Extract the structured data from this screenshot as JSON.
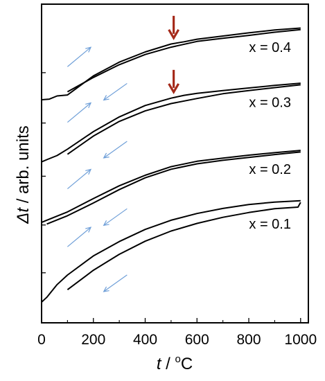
{
  "chart_data": {
    "type": "line",
    "title": "",
    "xlabel": {
      "var": "t",
      "unit": "oC",
      "sep": " / "
    },
    "ylabel": {
      "var": "Δt",
      "unit": "arb. units",
      "sep": " / "
    },
    "xlim": [
      0,
      1030
    ],
    "xticks": [
      0,
      200,
      400,
      600,
      800,
      1000
    ],
    "xtick_labels": [
      "0",
      "200",
      "400",
      "600",
      "800",
      "1000"
    ],
    "y_ticks_unlabeled": true,
    "ylim": [
      0,
      1
    ],
    "grid": false,
    "legend": "none",
    "series": [
      {
        "name": "x = 0.1",
        "heating": {
          "x": [
            0,
            20,
            60,
            100,
            200,
            300,
            400,
            500,
            600,
            700,
            800,
            900,
            1000
          ],
          "y": [
            0.065,
            0.08,
            0.12,
            0.15,
            0.21,
            0.255,
            0.293,
            0.322,
            0.343,
            0.359,
            0.371,
            0.379,
            0.383
          ]
        },
        "cooling": {
          "x": [
            1000,
            990,
            900,
            800,
            700,
            600,
            500,
            400,
            300,
            200,
            100
          ],
          "y": [
            0.378,
            0.363,
            0.358,
            0.346,
            0.331,
            0.312,
            0.288,
            0.256,
            0.215,
            0.165,
            0.104
          ]
        }
      },
      {
        "name": "x = 0.2",
        "heating": {
          "x": [
            0,
            20,
            60,
            100,
            200,
            300,
            400,
            500,
            600,
            700,
            800,
            900,
            1000
          ],
          "y": [
            0.315,
            0.322,
            0.335,
            0.348,
            0.39,
            0.43,
            0.463,
            0.49,
            0.507,
            0.517,
            0.526,
            0.534,
            0.541
          ]
        },
        "cooling": {
          "x": [
            1000,
            900,
            800,
            700,
            600,
            500,
            400,
            300,
            200,
            100,
            20
          ],
          "y": [
            0.536,
            0.528,
            0.519,
            0.51,
            0.499,
            0.482,
            0.455,
            0.418,
            0.376,
            0.336,
            0.31
          ]
        }
      },
      {
        "name": "x = 0.3",
        "heating": {
          "x": [
            0,
            20,
            60,
            100,
            200,
            300,
            400,
            500,
            550,
            600,
            700,
            800,
            900,
            1000
          ],
          "y": [
            0.505,
            0.512,
            0.525,
            0.545,
            0.6,
            0.646,
            0.682,
            0.705,
            0.714,
            0.72,
            0.729,
            0.737,
            0.745,
            0.752
          ]
        },
        "cooling": {
          "x": [
            1000,
            900,
            800,
            700,
            600,
            500,
            400,
            300,
            200,
            100
          ],
          "y": [
            0.747,
            0.738,
            0.729,
            0.719,
            0.704,
            0.688,
            0.665,
            0.632,
            0.586,
            0.529
          ]
        }
      },
      {
        "name": "x = 0.4",
        "heating": {
          "x": [
            0,
            30,
            60,
            100,
            200,
            300,
            400,
            500,
            550,
            600,
            700,
            800,
            900,
            1000
          ],
          "y": [
            0.7,
            0.702,
            0.712,
            0.715,
            0.775,
            0.818,
            0.85,
            0.875,
            0.882,
            0.89,
            0.9,
            0.91,
            0.919,
            0.925
          ]
        },
        "cooling": {
          "x": [
            1000,
            900,
            800,
            700,
            600,
            500,
            400,
            300,
            200,
            100
          ],
          "y": [
            0.92,
            0.912,
            0.902,
            0.893,
            0.883,
            0.865,
            0.842,
            0.81,
            0.77,
            0.725
          ]
        }
      }
    ],
    "series_labels": [
      "x = 0.1",
      "x = 0.2",
      "x = 0.3",
      "x = 0.4"
    ],
    "annotations": [
      {
        "type": "down-arrow",
        "x": 510,
        "series": "x = 0.4",
        "color": "#a52a1a"
      },
      {
        "type": "down-arrow",
        "x": 510,
        "series": "x = 0.3",
        "color": "#a52a1a"
      },
      {
        "type": "direction-arrows",
        "meaning": "heating-right-up / cooling-left-down",
        "color": "#6f9fd8"
      }
    ],
    "colors": {
      "curve": "#000000",
      "marker_arrow": "#a52a1a",
      "direction_arrow": "#6f9fd8"
    }
  }
}
